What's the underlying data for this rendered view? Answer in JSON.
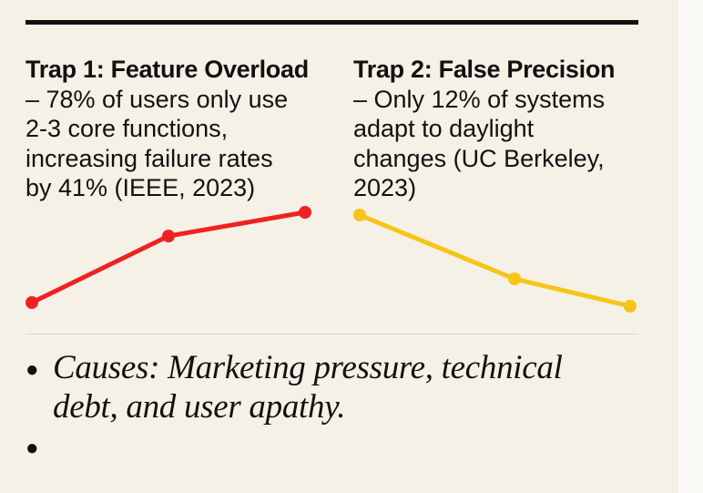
{
  "columns": [
    {
      "title": "Trap 1: Feature Overload",
      "lines": [
        "– 78% of users only use",
        "2-3 core functions,",
        "increasing failure rates",
        "by 41% (IEEE, 2023)"
      ]
    },
    {
      "title": "Trap 2: False Precision",
      "lines": [
        "– Only 12% of systems",
        "adapt to daylight",
        "changes (UC Berkeley,",
        "2023)"
      ]
    }
  ],
  "bullets": [
    {
      "lines": [
        "Causes: Marketing pressure, technical",
        "debt, and user apathy."
      ]
    }
  ]
}
